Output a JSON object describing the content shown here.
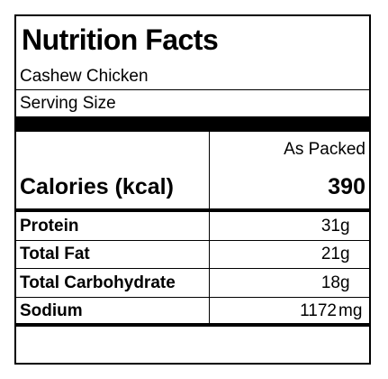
{
  "label": {
    "title": "Nutrition Facts",
    "product_name": "Cashew Chicken",
    "serving_size_label": "Serving Size",
    "column_header": "As Packed",
    "calories": {
      "label": "Calories (kcal)",
      "value": "390"
    },
    "nutrients": [
      {
        "name": "Protein",
        "value": "31",
        "unit": "g"
      },
      {
        "name": "Total Fat",
        "value": "21",
        "unit": "g"
      },
      {
        "name": "Total Carbohydrate",
        "value": "18",
        "unit": "g"
      },
      {
        "name": "Sodium",
        "value": "1172",
        "unit": "mg"
      }
    ]
  }
}
